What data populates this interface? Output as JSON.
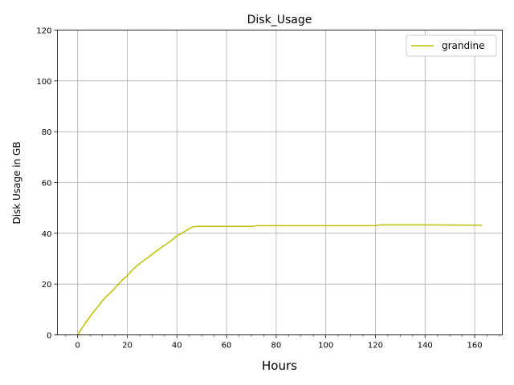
{
  "chart_data": {
    "type": "line",
    "title": "Disk_Usage",
    "xlabel": "Hours",
    "ylabel": "Disk Usage in GB",
    "xlim": [
      -8.15,
      171.15
    ],
    "ylim": [
      0,
      120
    ],
    "xticks": [
      0,
      20,
      40,
      60,
      80,
      100,
      120,
      140,
      160
    ],
    "yticks": [
      0,
      20,
      40,
      60,
      80,
      100,
      120
    ],
    "x_minor_step": 5,
    "grid": true,
    "legend_position": "top-right",
    "series": [
      {
        "name": "grandine",
        "color": "#bfbf00",
        "x": [
          0,
          3,
          6,
          9,
          11,
          14,
          16,
          18,
          20,
          22,
          24,
          26,
          28,
          30,
          32,
          34,
          36,
          38,
          40,
          42,
          44,
          46,
          47,
          48,
          60,
          71,
          72,
          100,
          120,
          121,
          122,
          140,
          163
        ],
        "y": [
          0,
          4.5,
          8.5,
          12.2,
          14.6,
          17.3,
          19.5,
          21.6,
          23.3,
          25.5,
          27.3,
          28.8,
          30.2,
          31.7,
          33.2,
          34.6,
          35.9,
          37.3,
          39.0,
          40.0,
          41.2,
          42.4,
          42.6,
          42.7,
          42.7,
          42.7,
          43.0,
          43.0,
          43.0,
          43.2,
          43.3,
          43.3,
          43.2
        ]
      }
    ]
  }
}
